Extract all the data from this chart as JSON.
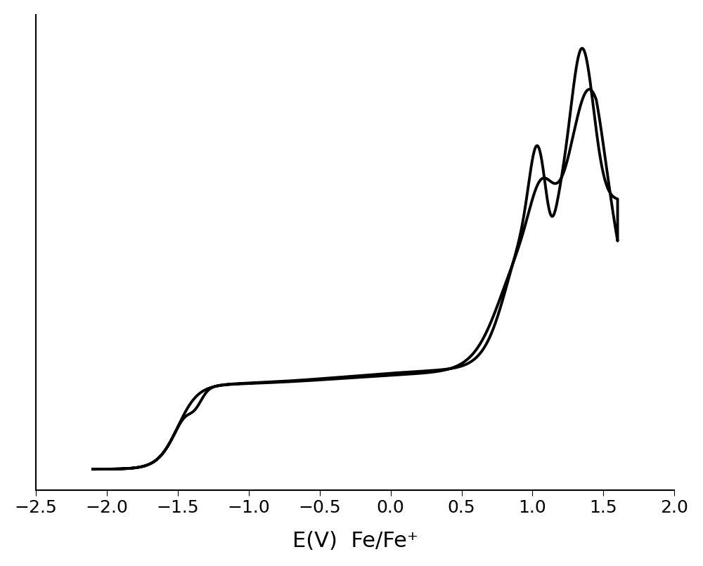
{
  "xlim": [
    -2.5,
    2.0
  ],
  "xlabel": "E(V)  Fe/Fe⁺",
  "xlabel_fontsize": 22,
  "tick_fontsize": 18,
  "xticks": [
    -2.5,
    -2.0,
    -1.5,
    -1.0,
    -0.5,
    0.0,
    0.5,
    1.0,
    1.5,
    2.0
  ],
  "line_color": "#000000",
  "line_width": 2.8,
  "background_color": "#ffffff",
  "figsize": [
    10.0,
    8.06
  ]
}
